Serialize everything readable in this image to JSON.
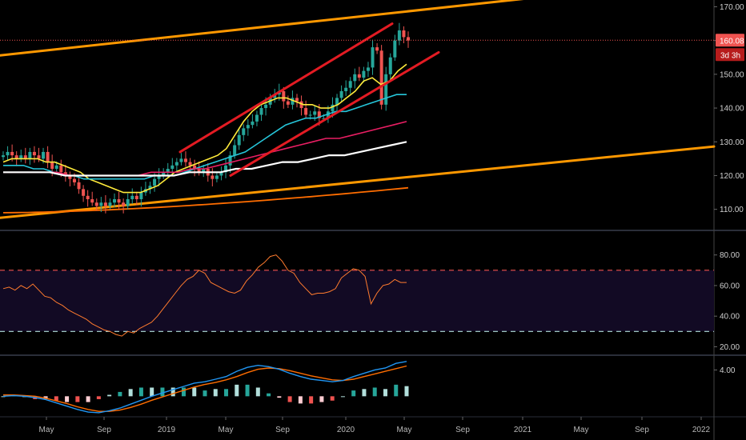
{
  "chart_data": [
    {
      "type": "candlestick",
      "panel": "price",
      "y_ticks": [
        "170.00",
        "160.00",
        "150.00",
        "140.00",
        "130.00",
        "120.00",
        "110.00"
      ],
      "y_tick_values": [
        170,
        160,
        150,
        140,
        130,
        120,
        110
      ],
      "ylim": [
        104,
        172
      ],
      "last_price_label": "160.08",
      "last_price": 160.08,
      "countdown_label": "3d 3h",
      "colors": {
        "up": "#26a69a",
        "down": "#ef5350",
        "ma20": "#ffeb3b",
        "ma50": "#26c6da",
        "ma100": "#e91e63",
        "ma200": "#ffffff",
        "ma_long": "#ff6d00",
        "trendline_orange": "#ff9800",
        "trendline_red": "#e31b23"
      },
      "candles_weekly_close_approx": [
        126,
        127,
        126,
        125,
        126,
        125,
        127,
        126,
        125,
        127,
        124,
        122,
        123,
        121,
        120,
        119,
        118,
        116,
        114,
        113,
        112,
        111,
        112,
        111,
        112,
        113,
        112,
        111,
        113,
        114,
        113,
        115,
        116,
        117,
        119,
        120,
        121,
        122,
        123,
        124,
        125,
        124,
        123,
        122,
        121,
        122,
        120,
        119,
        120,
        121,
        123,
        126,
        129,
        132,
        134,
        135,
        136,
        138,
        140,
        141,
        143,
        144,
        145,
        142,
        141,
        143,
        142,
        140,
        138,
        138,
        139,
        137,
        137,
        139,
        141,
        143,
        145,
        146,
        148,
        150,
        149,
        151,
        152,
        158,
        157,
        141,
        150,
        155,
        160,
        163,
        161,
        160
      ],
      "moving_averages": [
        {
          "name": "",
          "color": "#ffeb3b",
          "values": [
            124,
            125,
            125,
            125,
            125,
            124,
            124,
            123,
            122,
            121,
            119,
            118,
            117,
            116,
            115,
            115,
            115,
            116,
            117,
            119,
            121,
            122,
            123,
            124,
            125,
            126,
            128,
            132,
            136,
            139,
            141,
            142,
            143,
            143,
            142,
            141,
            141,
            140,
            140,
            141,
            143,
            145,
            148,
            149,
            147,
            148,
            151,
            153
          ]
        },
        {
          "name": "",
          "color": "#26c6da",
          "values": [
            123,
            123,
            123,
            122,
            122,
            121,
            120,
            120,
            119,
            119,
            119,
            119,
            119,
            119,
            119,
            120,
            120,
            120,
            121,
            122,
            123,
            124,
            125,
            126,
            127,
            129,
            131,
            133,
            135,
            136,
            137,
            137,
            138,
            139,
            139,
            140,
            141,
            142,
            143,
            144,
            144
          ]
        },
        {
          "name": "",
          "color": "#e91e63",
          "values": [
            121,
            121,
            121,
            121,
            121,
            120,
            120,
            120,
            120,
            120,
            120,
            121,
            121,
            121,
            122,
            122,
            123,
            124,
            125,
            126,
            127,
            128,
            129,
            130,
            131,
            131,
            132,
            133,
            134,
            135,
            136
          ]
        },
        {
          "name": "",
          "color": "#ffffff",
          "values": [
            121,
            121,
            121,
            121,
            120,
            120,
            120,
            120,
            120,
            120,
            120,
            120,
            121,
            121,
            121,
            122,
            122,
            123,
            124,
            124,
            125,
            126,
            126,
            127,
            128,
            129,
            130
          ]
        }
      ]
    },
    {
      "type": "line",
      "panel": "rsi",
      "y_ticks": [
        "80.00",
        "60.00",
        "40.00",
        "20.00"
      ],
      "y_tick_values": [
        80,
        60,
        40,
        20
      ],
      "ylim": [
        15,
        95
      ],
      "levels": [
        70,
        30
      ],
      "values": [
        58,
        59,
        57,
        60,
        58,
        61,
        57,
        53,
        52,
        49,
        47,
        44,
        42,
        40,
        38,
        35,
        33,
        31,
        30,
        28,
        27,
        30,
        29,
        32,
        34,
        36,
        40,
        45,
        50,
        55,
        60,
        64,
        66,
        70,
        68,
        62,
        60,
        58,
        56,
        55,
        57,
        63,
        67,
        72,
        75,
        79,
        80,
        76,
        70,
        68,
        62,
        58,
        54,
        55,
        55,
        56,
        58,
        65,
        68,
        71,
        70,
        66,
        48,
        55,
        60,
        61,
        64,
        62,
        62
      ]
    },
    {
      "type": "bar+line",
      "panel": "macd",
      "y_ticks": [
        "4.00"
      ],
      "y_tick_values": [
        4
      ],
      "ylim": [
        -3,
        6
      ],
      "macd": [
        0,
        0.1,
        0,
        -0.2,
        -0.5,
        -1,
        -1.5,
        -2,
        -2.4,
        -2.5,
        -2.2,
        -1.8,
        -1.2,
        -0.6,
        0,
        0.5,
        1,
        1.5,
        2,
        2.2,
        2.6,
        3,
        3.8,
        4.4,
        4.7,
        4.5,
        4.1,
        3.5,
        3,
        2.6,
        2.4,
        2.2,
        2.4,
        3,
        3.5,
        4,
        4.3,
        5,
        5.3
      ],
      "signal": [
        0.2,
        0.2,
        0.1,
        0,
        -0.3,
        -0.7,
        -1.1,
        -1.6,
        -2,
        -2.3,
        -2.3,
        -2.1,
        -1.7,
        -1.2,
        -0.6,
        -0.1,
        0.4,
        0.9,
        1.4,
        1.8,
        2.1,
        2.5,
        3,
        3.6,
        4.1,
        4.3,
        4.2,
        3.9,
        3.5,
        3.1,
        2.8,
        2.5,
        2.4,
        2.6,
        3,
        3.4,
        3.8,
        4.2,
        4.6
      ],
      "histogram": [
        0,
        0.1,
        0,
        -0.2,
        -0.2,
        -0.3,
        -0.4,
        -0.4,
        -0.4,
        -0.2,
        0.1,
        0.3,
        0.5,
        0.6,
        0.6,
        0.6,
        0.6,
        0.6,
        0.6,
        0.4,
        0.5,
        0.5,
        0.8,
        0.8,
        0.6,
        0.2,
        -0.1,
        -0.4,
        -0.5,
        -0.5,
        -0.4,
        -0.3,
        0,
        0.4,
        0.5,
        0.6,
        0.5,
        0.8,
        0.7
      ]
    },
    {
      "type": "axis",
      "panel": "time",
      "x_labels": [
        "May",
        "Sep",
        "2019",
        "May",
        "Sep",
        "2020",
        "May",
        "Sep",
        "2021",
        "May",
        "Sep",
        "2022"
      ]
    }
  ]
}
